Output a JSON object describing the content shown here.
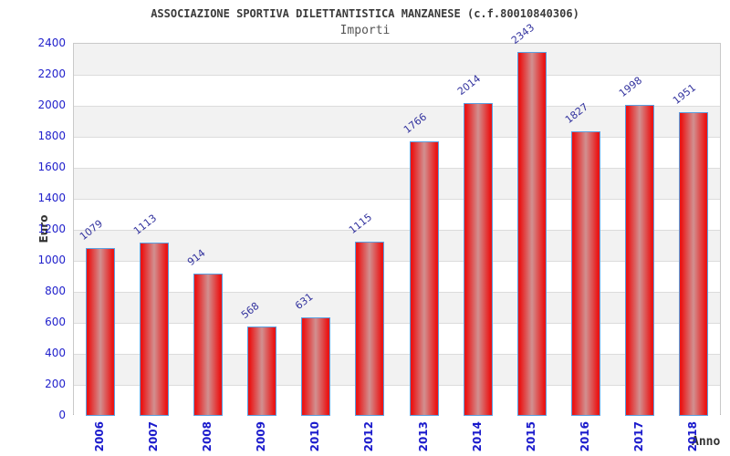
{
  "header": {
    "title": "ASSOCIAZIONE SPORTIVA DILETTANTISTICA MANZANESE (c.f.80010840306)",
    "subtitle": "Importi"
  },
  "chart_data": {
    "type": "bar",
    "title": "ASSOCIAZIONE SPORTIVA DILETTANTISTICA MANZANESE (c.f.80010840306)",
    "subtitle": "Importi",
    "categories": [
      "2006",
      "2007",
      "2008",
      "2009",
      "2010",
      "2012",
      "2013",
      "2014",
      "2015",
      "2016",
      "2017",
      "2018"
    ],
    "values": [
      1079,
      1113,
      914,
      568,
      631,
      1115,
      1766,
      2014,
      2343,
      1827,
      1998,
      1951
    ],
    "xlabel": "Anno",
    "ylabel": "Euro",
    "ylim": [
      0,
      2400
    ],
    "ytick_step": 200,
    "grid": true,
    "legend": false,
    "bands_alternating": true
  },
  "colors": {
    "bar_edge": "#ea1616",
    "bar_mid": "#d19090",
    "bar_border": "#5b9fe0",
    "band_gray": "#f2f2f2",
    "band_white": "#ffffff",
    "grid_line": "#dcdcdc",
    "y_tick_label": "#2222cc",
    "x_tick_label": "#1a1acc",
    "value_label": "#32329e",
    "title_color": "#3a3a3a",
    "subtitle_color": "#555555"
  }
}
